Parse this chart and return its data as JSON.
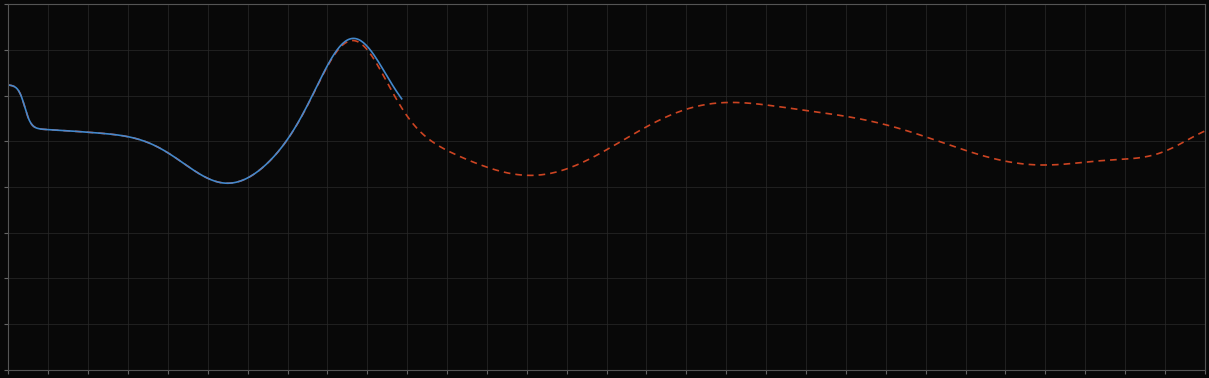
{
  "background_color": "#080808",
  "plot_bg_color": "#080808",
  "grid_color": "#2a2a2a",
  "line1_color": "#4488cc",
  "line2_color": "#cc4422",
  "line_width": 1.2,
  "fig_width": 12.09,
  "fig_height": 3.78,
  "dpi": 100,
  "xlim": [
    0,
    365
  ],
  "ylim": [
    0,
    10
  ],
  "n_xgrid": 30,
  "n_ygrid": 8,
  "spine_color": "#555555",
  "tick_color": "#666666"
}
